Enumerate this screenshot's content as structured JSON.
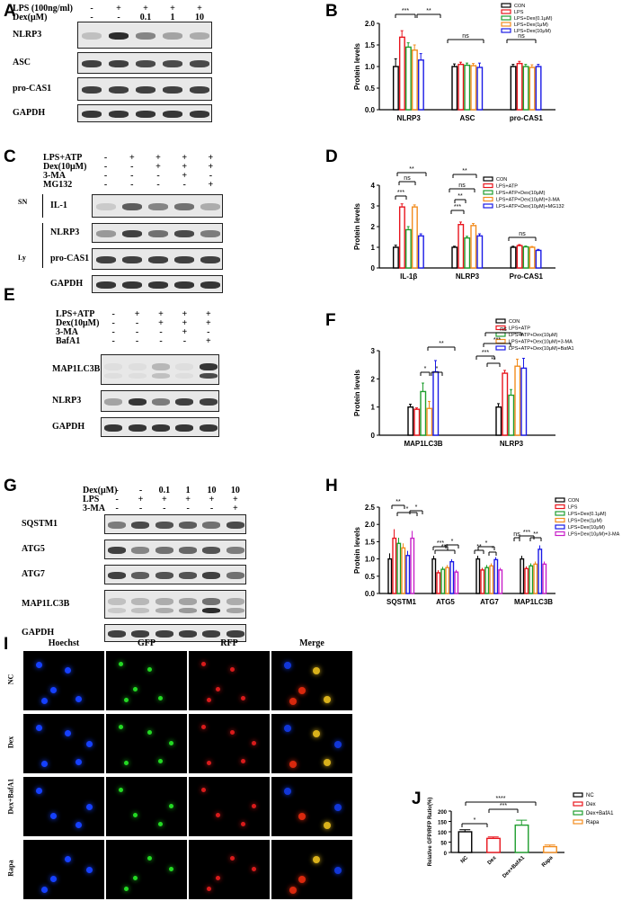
{
  "panels": {
    "A": {
      "label": "A",
      "treat": [
        {
          "name": "LPS (100ng/ml)",
          "vals": [
            "-",
            "+",
            "+",
            "+",
            "+"
          ]
        },
        {
          "name": "Dex(μM)",
          "vals": [
            "-",
            "-",
            "0.1",
            "1",
            "10"
          ]
        }
      ],
      "rows": [
        "NLRP3",
        "ASC",
        "pro-CAS1",
        "GAPDH"
      ]
    },
    "B": {
      "label": "B"
    },
    "C": {
      "label": "C",
      "treat": [
        {
          "name": "LPS+ATP",
          "vals": [
            "-",
            "+",
            "+",
            "+",
            "+"
          ]
        },
        {
          "name": "Dex(10μM)",
          "vals": [
            "-",
            "-",
            "+",
            "+",
            "+"
          ]
        },
        {
          "name": "3-MA",
          "vals": [
            "-",
            "-",
            "-",
            "+",
            "-"
          ]
        },
        {
          "name": "MG132",
          "vals": [
            "-",
            "-",
            "-",
            "-",
            "+"
          ]
        }
      ],
      "rows": [
        "IL-1",
        "NLRP3",
        "pro-CAS1",
        "GAPDH"
      ],
      "groups": [
        "SN",
        "Ly"
      ]
    },
    "D": {
      "label": "D"
    },
    "E": {
      "label": "E",
      "treat": [
        {
          "name": "LPS+ATP",
          "vals": [
            "-",
            "+",
            "+",
            "+",
            "+"
          ]
        },
        {
          "name": "Dex(10μM)",
          "vals": [
            "-",
            "-",
            "+",
            "+",
            "+"
          ]
        },
        {
          "name": "3-MA",
          "vals": [
            "-",
            "-",
            "-",
            "+",
            "-"
          ]
        },
        {
          "name": "BafA1",
          "vals": [
            "-",
            "-",
            "-",
            "-",
            "+"
          ]
        }
      ],
      "rows": [
        "MAP1LC3B",
        "NLRP3",
        "GAPDH"
      ]
    },
    "F": {
      "label": "F"
    },
    "G": {
      "label": "G",
      "treat": [
        {
          "name": "Dex(μM)",
          "vals": [
            "-",
            "-",
            "0.1",
            "1",
            "10",
            "10"
          ]
        },
        {
          "name": "LPS",
          "vals": [
            "-",
            "+",
            "+",
            "+",
            "+",
            "+"
          ]
        },
        {
          "name": "3-MA",
          "vals": [
            "-",
            "-",
            "-",
            "-",
            "-",
            "+"
          ]
        }
      ],
      "rows": [
        "SQSTM1",
        "ATG5",
        "ATG7",
        "MAP1LC3B",
        "GAPDH"
      ]
    },
    "H": {
      "label": "H"
    },
    "I": {
      "label": "I",
      "cols": [
        "Hoechst",
        "GFP",
        "RFP",
        "Merge"
      ],
      "rows": [
        "NC",
        "Dex",
        "Dex+BafA1",
        "Rapa"
      ]
    },
    "J": {
      "label": "J"
    }
  },
  "chart_data": [
    {
      "id": "B",
      "type": "bar",
      "ylabel": "Protein levels",
      "ylim": [
        0,
        2.0
      ],
      "yticks": [
        "0.0",
        "0.5",
        "1.0",
        "1.5",
        "2.0"
      ],
      "categories": [
        "NLRP3",
        "ASC",
        "pro-CAS1"
      ],
      "series": [
        {
          "name": "CON",
          "color": "#000000",
          "values": [
            1.0,
            1.0,
            1.0
          ],
          "err": [
            0.18,
            0.06,
            0.05
          ]
        },
        {
          "name": "LPS",
          "color": "#e8141c",
          "values": [
            1.68,
            1.05,
            1.07
          ],
          "err": [
            0.15,
            0.05,
            0.05
          ]
        },
        {
          "name": "LPS+Dex(0.1μM)",
          "color": "#1e9e2e",
          "values": [
            1.45,
            1.03,
            1.0
          ],
          "err": [
            0.1,
            0.05,
            0.05
          ]
        },
        {
          "name": "LPS+Dex(1μM)",
          "color": "#f28c1e",
          "values": [
            1.38,
            1.02,
            0.98
          ],
          "err": [
            0.12,
            0.05,
            0.06
          ]
        },
        {
          "name": "LPS+Dex(10μM)",
          "color": "#1a1ae6",
          "values": [
            1.15,
            0.98,
            1.0
          ],
          "err": [
            0.15,
            0.1,
            0.05
          ]
        }
      ],
      "annotations": [
        "***",
        "**",
        "ns",
        "ns"
      ]
    },
    {
      "id": "D",
      "type": "bar",
      "ylabel": "Protein levels",
      "ylim": [
        0,
        4
      ],
      "yticks": [
        "0",
        "1",
        "2",
        "3",
        "4"
      ],
      "categories": [
        "IL-1β",
        "NLRP3",
        "Pro-CAS1"
      ],
      "series": [
        {
          "name": "CON",
          "color": "#000000",
          "values": [
            1.0,
            1.0,
            1.0
          ],
          "err": [
            0.1,
            0.05,
            0.05
          ]
        },
        {
          "name": "LPS+ATP",
          "color": "#e8141c",
          "values": [
            2.95,
            2.1,
            1.08
          ],
          "err": [
            0.15,
            0.12,
            0.05
          ]
        },
        {
          "name": "LPS+ATP+Dex(10μM)",
          "color": "#1e9e2e",
          "values": [
            1.85,
            1.45,
            1.02
          ],
          "err": [
            0.15,
            0.08,
            0.04
          ]
        },
        {
          "name": "LPS+ATP+Dex(10μM)+3-MA",
          "color": "#f28c1e",
          "values": [
            2.95,
            2.05,
            1.0
          ],
          "err": [
            0.1,
            0.1,
            0.04
          ]
        },
        {
          "name": "LPS+ATP+Dex(10μM)+MG132",
          "color": "#1a1ae6",
          "values": [
            1.55,
            1.55,
            0.85
          ],
          "err": [
            0.1,
            0.1,
            0.05
          ]
        }
      ],
      "annotations": [
        "***",
        "ns",
        "**",
        "***",
        "**",
        "ns",
        "**",
        "ns"
      ]
    },
    {
      "id": "F",
      "type": "bar",
      "ylabel": "Protein levels",
      "ylim": [
        0,
        3
      ],
      "yticks": [
        "0",
        "1",
        "2",
        "3"
      ],
      "categories": [
        "MAP1LC3B",
        "NLRP3"
      ],
      "series": [
        {
          "name": "CON",
          "color": "#000000",
          "values": [
            1.0,
            1.0
          ],
          "err": [
            0.1,
            0.12
          ]
        },
        {
          "name": "LPS+ATP",
          "color": "#e8141c",
          "values": [
            0.92,
            2.2
          ],
          "err": [
            0.05,
            0.1
          ]
        },
        {
          "name": "LPS+ATP+Dex(10μM)",
          "color": "#1e9e2e",
          "values": [
            1.55,
            1.42
          ],
          "err": [
            0.3,
            0.2
          ]
        },
        {
          "name": "LPS+ATP+Dex(10μM)+3-MA",
          "color": "#f28c1e",
          "values": [
            0.95,
            2.45
          ],
          "err": [
            0.25,
            0.25
          ]
        },
        {
          "name": "LPS+ATP+Dex(10μM)+BafA1",
          "color": "#1a1ae6",
          "values": [
            2.25,
            2.38
          ],
          "err": [
            0.4,
            0.35
          ]
        }
      ],
      "annotations": [
        "*",
        "*",
        "**",
        "***",
        "**",
        "***",
        "ns"
      ]
    },
    {
      "id": "H",
      "type": "bar",
      "ylabel": "Protein levels",
      "ylim": [
        0,
        2.5
      ],
      "yticks": [
        "0.0",
        "0.5",
        "1.0",
        "1.5",
        "2.0",
        "2.5"
      ],
      "categories": [
        "SQSTM1",
        "ATG5",
        "ATG7",
        "MAP1LC3B"
      ],
      "series": [
        {
          "name": "CON",
          "color": "#000000",
          "values": [
            1.0,
            1.0,
            1.0,
            1.0
          ],
          "err": [
            0.15,
            0.08,
            0.08,
            0.08
          ]
        },
        {
          "name": "LPS",
          "color": "#e8141c",
          "values": [
            1.6,
            0.6,
            0.68,
            0.72
          ],
          "err": [
            0.25,
            0.06,
            0.05,
            0.05
          ]
        },
        {
          "name": "LPS+Dex(0.1μM)",
          "color": "#1e9e2e",
          "values": [
            1.45,
            0.7,
            0.75,
            0.8
          ],
          "err": [
            0.15,
            0.06,
            0.06,
            0.06
          ]
        },
        {
          "name": "LPS+Dex(1μM)",
          "color": "#f28c1e",
          "values": [
            1.32,
            0.75,
            0.8,
            0.85
          ],
          "err": [
            0.12,
            0.06,
            0.06,
            0.06
          ]
        },
        {
          "name": "LPS+Dex(10μM)",
          "color": "#1a1ae6",
          "values": [
            1.1,
            0.92,
            0.98,
            1.28
          ],
          "err": [
            0.12,
            0.06,
            0.06,
            0.1
          ]
        },
        {
          "name": "LPS+Dex(10μM)+3-MA",
          "color": "#c81ec8",
          "values": [
            1.6,
            0.62,
            0.68,
            0.85
          ],
          "err": [
            0.2,
            0.05,
            0.05,
            0.06
          ]
        }
      ],
      "annotations": [
        "**",
        "*",
        "*",
        "***",
        "***",
        "*",
        "**",
        "*",
        "*",
        "ns",
        "***",
        "**"
      ]
    },
    {
      "id": "J",
      "type": "bar",
      "ylabel": "Relative GFP/RFP Ratio(%)",
      "ylim": [
        0,
        200
      ],
      "yticks": [
        "0",
        "50",
        "100",
        "150",
        "200"
      ],
      "categories": [
        "NC",
        "Dex",
        "Dex+BafA1",
        "Rapa"
      ],
      "series": [
        {
          "name": "values",
          "values": [
            100,
            68,
            132,
            28
          ],
          "err": [
            10,
            7,
            24,
            8
          ]
        }
      ],
      "legend": [
        {
          "name": "NC",
          "color": "#000000"
        },
        {
          "name": "Dex",
          "color": "#e8141c"
        },
        {
          "name": "Dex+BafA1",
          "color": "#1e9e2e"
        },
        {
          "name": "Rapa",
          "color": "#f28c1e"
        }
      ],
      "annotations": [
        "*",
        "***",
        "****"
      ]
    }
  ]
}
